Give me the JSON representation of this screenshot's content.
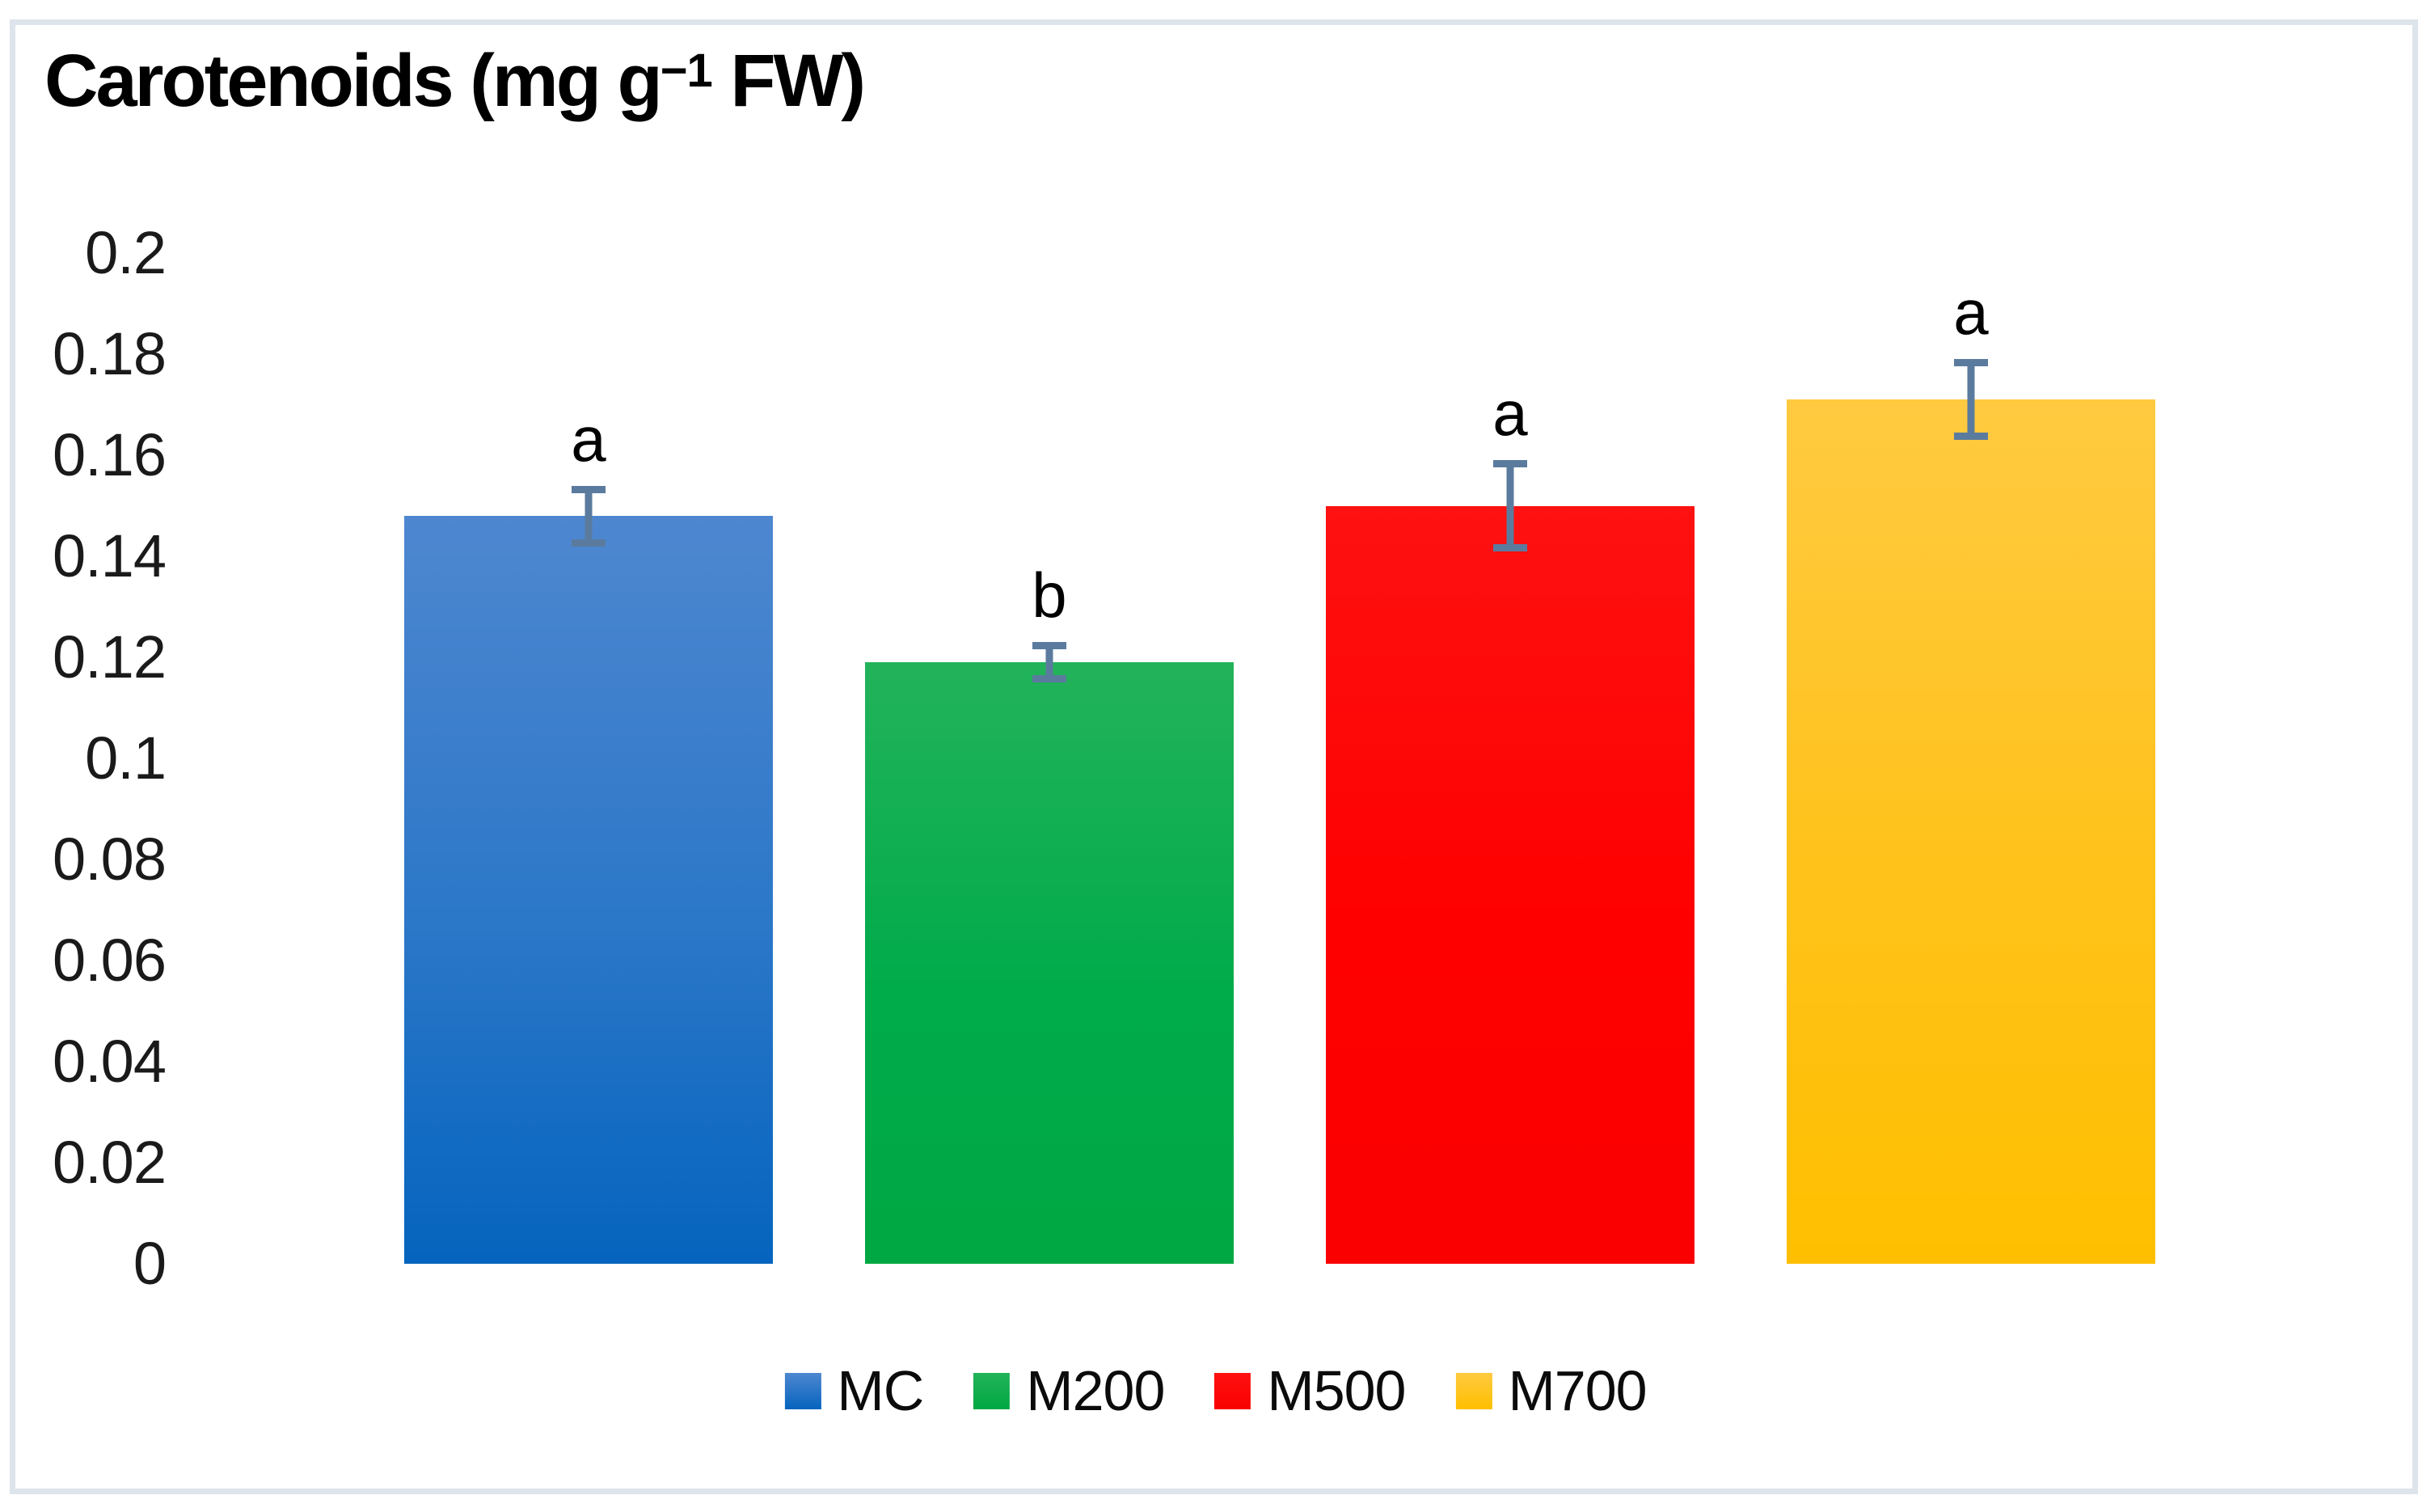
{
  "chart_data": {
    "type": "bar",
    "title": {
      "full": "Carotenoids (mg g−1 FW)",
      "prefix": "Carotenoids (mg g",
      "superscript": "−1",
      "suffix": " FW)"
    },
    "categories": [
      "MC",
      "M200",
      "M500",
      "M700"
    ],
    "series": [
      {
        "name": "Carotenoids",
        "values": [
          0.148,
          0.119,
          0.15,
          0.171
        ],
        "errors": [
          0.006,
          0.004,
          0.009,
          0.008
        ],
        "sig_letters": [
          "a",
          "b",
          "a",
          "a"
        ]
      }
    ],
    "ylim": [
      0,
      0.2
    ],
    "ytick_step": 0.02,
    "ytick_labels": [
      "0.2",
      "0.18",
      "0.16",
      "0.14",
      "0.12",
      "0.1",
      "0.08",
      "0.06",
      "0.04",
      "0.02",
      "0"
    ],
    "xlabel": "",
    "ylabel": "",
    "grid": false,
    "axis_lines": false,
    "legend_position": "bottom",
    "legend_entries": [
      {
        "label": "MC",
        "color": "#2E79C7"
      },
      {
        "label": "M200",
        "color": "#00AB4A"
      },
      {
        "label": "M500",
        "color": "#FE0000"
      },
      {
        "label": "M700",
        "color": "#FFC21A"
      }
    ],
    "bar_gradients": [
      [
        "#4E87D0",
        "#2B77C8",
        "#0564BE"
      ],
      [
        "#23B35A",
        "#00AB4A",
        "#00A843"
      ],
      [
        "#FE1111",
        "#FE0000",
        "#FA0000"
      ],
      [
        "#FFCA40",
        "#FFC21A",
        "#FFBF00"
      ]
    ],
    "error_bar_color": "#5B7B9E",
    "border_color": "#DDE4EB"
  }
}
